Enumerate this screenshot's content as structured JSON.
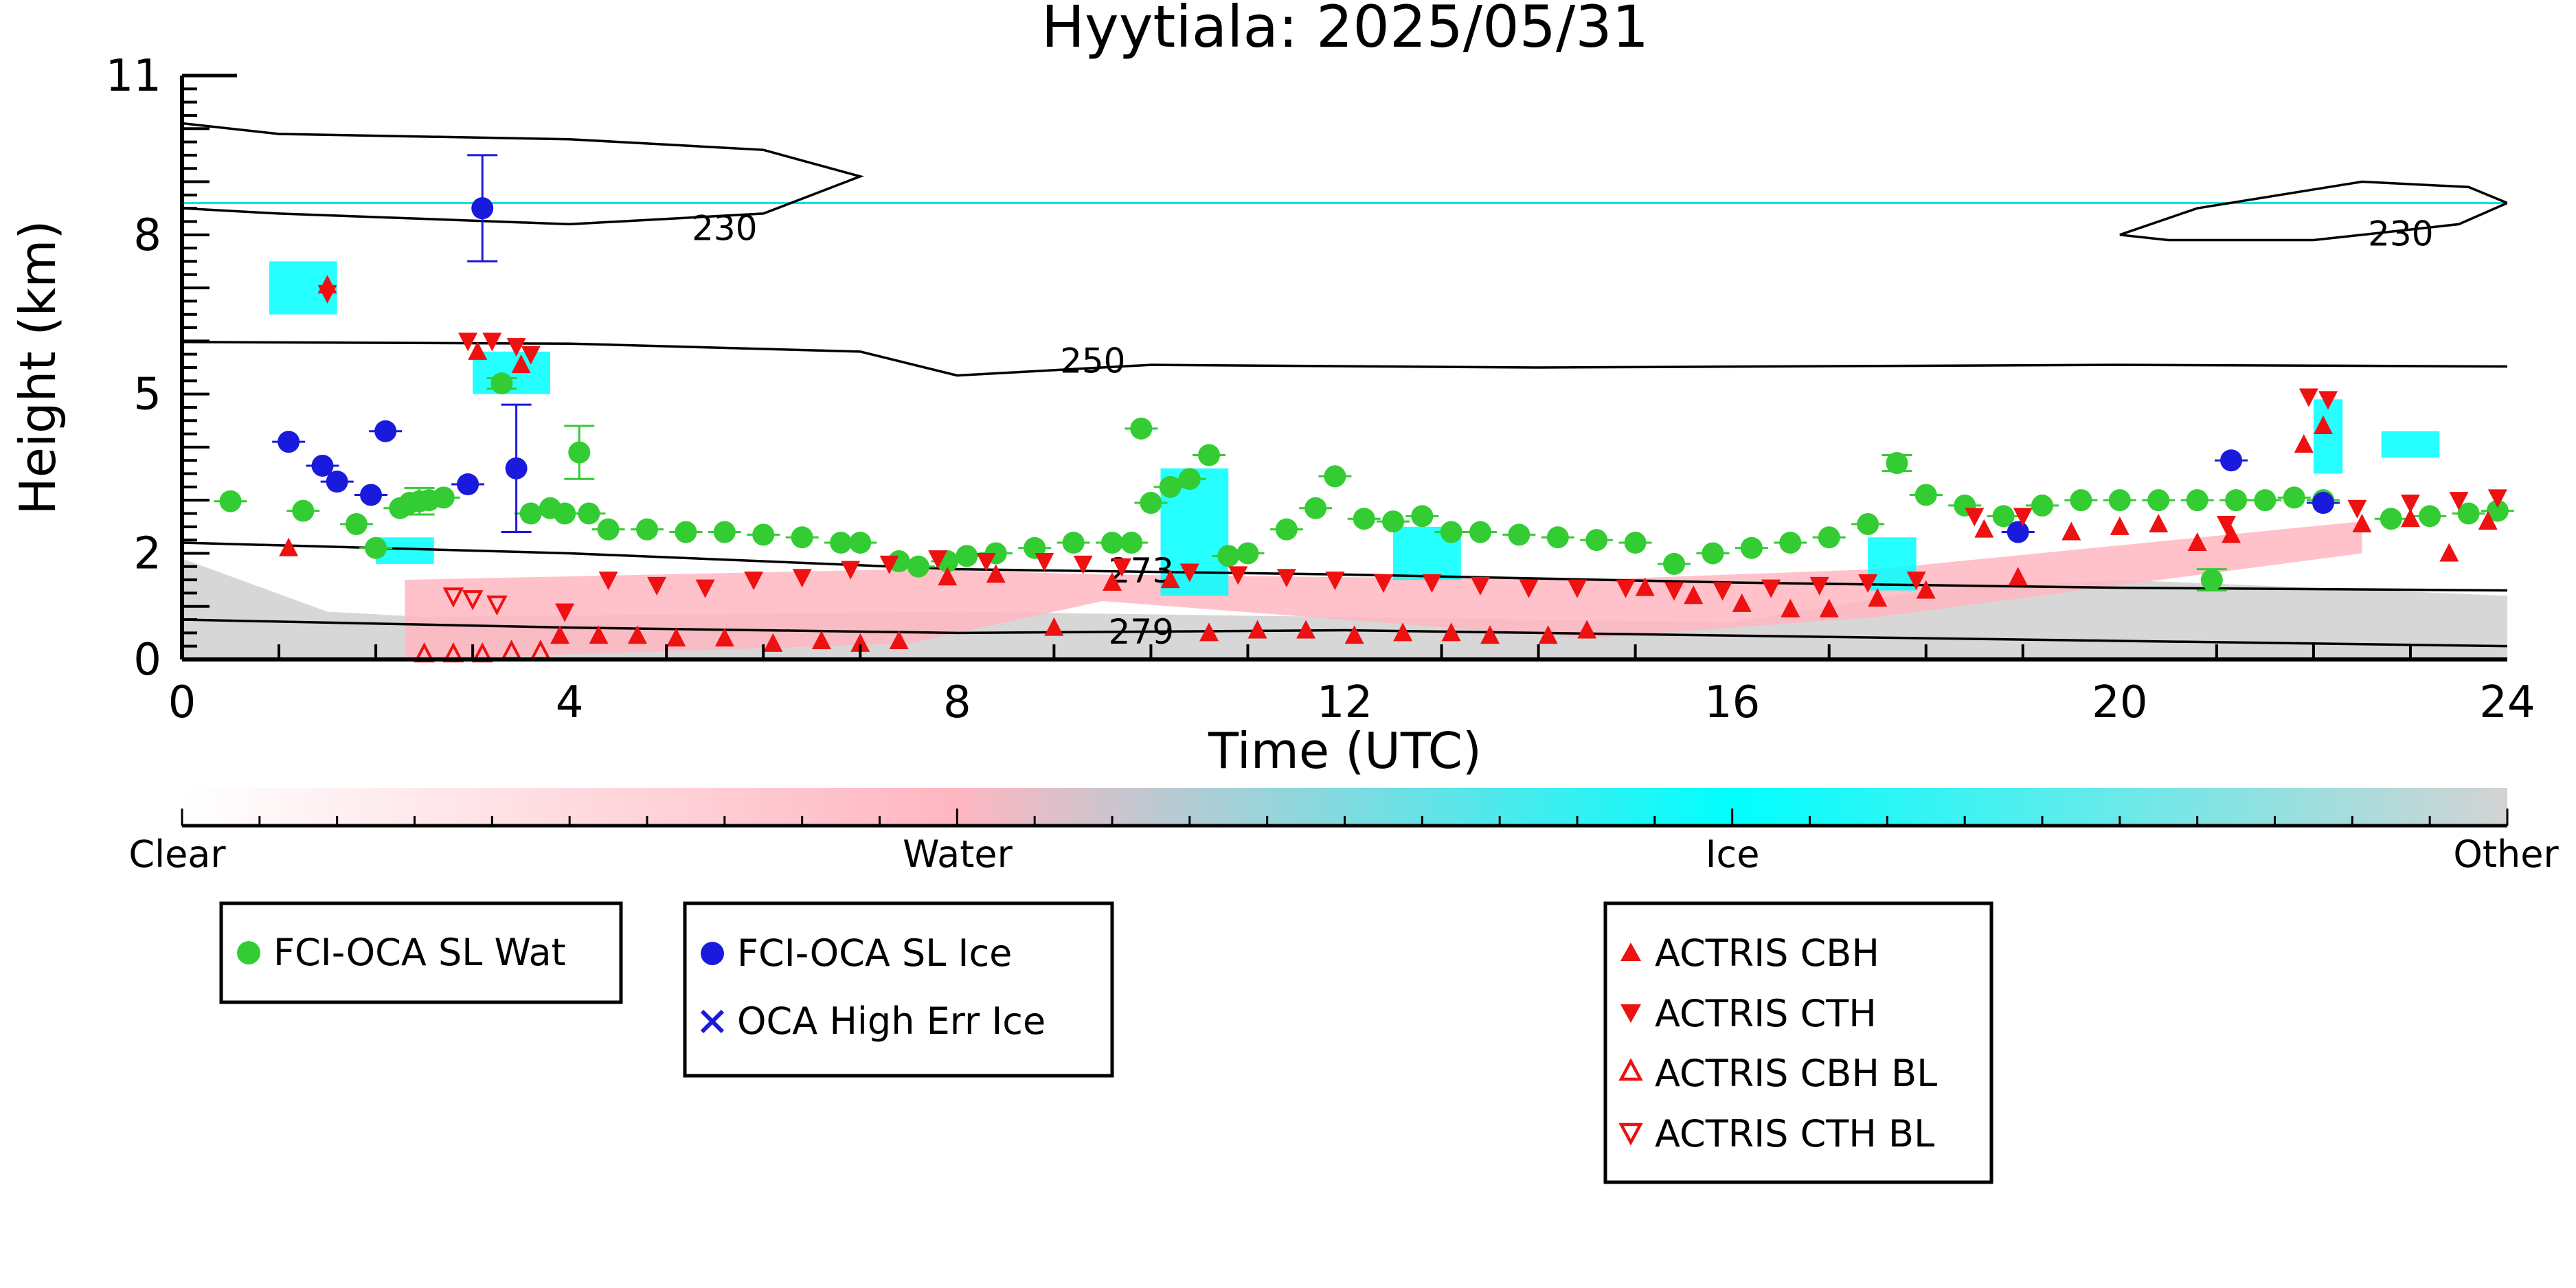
{
  "chart_data": {
    "type": "scatter",
    "title": "Hyytiala: 2025/05/31",
    "xlabel": "Time (UTC)",
    "ylabel": "Height (km)",
    "xlim": [
      0,
      24
    ],
    "ylim": [
      0,
      11
    ],
    "xticks": [
      0,
      4,
      8,
      12,
      16,
      20,
      24
    ],
    "yticks": [
      0,
      2,
      5,
      8,
      11
    ],
    "background_classification": {
      "ice_layer_top_km": 8.6,
      "other_low_layer_km": [
        [
          0,
          1.9
        ],
        [
          1.5,
          0.9
        ],
        [
          2.5,
          0.8
        ],
        [
          8,
          0.9
        ],
        [
          12,
          0.8
        ],
        [
          16,
          0.7
        ],
        [
          18,
          1.3
        ],
        [
          20,
          1.5
        ],
        [
          24,
          1.2
        ]
      ],
      "water_layer": [
        [
          2.3,
          0.0,
          1.5
        ],
        [
          7.5,
          0.3,
          1.7
        ],
        [
          9.5,
          1.1,
          1.6
        ],
        [
          14.5,
          0.4,
          1.5
        ],
        [
          17.5,
          0.8,
          1.7
        ],
        [
          22.5,
          2.0,
          2.6
        ]
      ],
      "ice_patches": [
        [
          0.9,
          1.6,
          6.5,
          7.5
        ],
        [
          3.0,
          3.8,
          5.0,
          5.8
        ],
        [
          2.0,
          2.6,
          1.8,
          2.3
        ],
        [
          10.1,
          10.8,
          1.2,
          3.6
        ],
        [
          12.5,
          13.2,
          1.5,
          2.5
        ],
        [
          17.4,
          17.9,
          1.3,
          2.3
        ],
        [
          22.0,
          22.3,
          3.5,
          4.9
        ],
        [
          22.7,
          23.3,
          3.8,
          4.3
        ]
      ]
    },
    "isotherms": [
      {
        "label": "230",
        "points": [
          [
            0,
            10.1
          ],
          [
            1,
            9.9
          ],
          [
            4,
            9.8
          ],
          [
            6,
            9.6
          ],
          [
            7,
            9.1
          ],
          [
            6,
            8.4
          ],
          [
            4,
            8.2
          ],
          [
            1,
            8.4
          ],
          [
            0,
            8.5
          ]
        ]
      },
      {
        "label": "230",
        "points": [
          [
            20.0,
            8.0
          ],
          [
            20.8,
            8.5
          ],
          [
            22.5,
            9.0
          ],
          [
            23.6,
            8.9
          ],
          [
            24,
            8.6
          ],
          [
            23.5,
            8.2
          ],
          [
            22,
            7.9
          ],
          [
            20.5,
            7.9
          ],
          [
            20.0,
            8.0
          ]
        ],
        "closed": true
      },
      {
        "label": "250",
        "points": [
          [
            0,
            5.98
          ],
          [
            4,
            5.95
          ],
          [
            7,
            5.8
          ],
          [
            8,
            5.35
          ],
          [
            10,
            5.55
          ],
          [
            14,
            5.5
          ],
          [
            20,
            5.55
          ],
          [
            24,
            5.52
          ]
        ]
      },
      {
        "label": "273",
        "points": [
          [
            0,
            2.2
          ],
          [
            2,
            2.1
          ],
          [
            4,
            2.0
          ],
          [
            8,
            1.7
          ],
          [
            12,
            1.6
          ],
          [
            16,
            1.45
          ],
          [
            20,
            1.35
          ],
          [
            24,
            1.3
          ]
        ]
      },
      {
        "label": "279",
        "points": [
          [
            0,
            0.75
          ],
          [
            4,
            0.6
          ],
          [
            8,
            0.5
          ],
          [
            12,
            0.55
          ],
          [
            16,
            0.45
          ],
          [
            20,
            0.35
          ],
          [
            24,
            0.25
          ]
        ]
      }
    ],
    "series": [
      {
        "name": "FCI-OCA SL Wat",
        "marker": "circle",
        "color": "#33cc33",
        "points": [
          [
            0.5,
            2.98
          ],
          [
            1.25,
            2.8
          ],
          [
            1.8,
            2.55
          ],
          [
            2.0,
            2.1
          ],
          [
            2.25,
            2.85
          ],
          [
            2.35,
            2.95
          ],
          [
            2.45,
            2.98
          ],
          [
            2.55,
            3.0
          ],
          [
            2.7,
            3.05
          ],
          [
            3.3,
            5.2
          ],
          [
            3.6,
            2.75
          ],
          [
            3.8,
            2.85
          ],
          [
            3.95,
            2.75
          ],
          [
            4.1,
            3.9
          ],
          [
            4.2,
            2.75
          ],
          [
            4.4,
            2.45
          ],
          [
            4.8,
            2.45
          ],
          [
            5.2,
            2.4
          ],
          [
            5.6,
            2.4
          ],
          [
            6.0,
            2.35
          ],
          [
            6.4,
            2.3
          ],
          [
            6.8,
            2.2
          ],
          [
            7.0,
            2.2
          ],
          [
            7.4,
            1.85
          ],
          [
            7.6,
            1.75
          ],
          [
            7.9,
            1.85
          ],
          [
            8.1,
            1.95
          ],
          [
            8.4,
            2.0
          ],
          [
            8.8,
            2.1
          ],
          [
            9.2,
            2.2
          ],
          [
            9.6,
            2.2
          ],
          [
            9.8,
            2.2
          ],
          [
            9.9,
            4.35
          ],
          [
            10.0,
            2.95
          ],
          [
            10.2,
            3.25
          ],
          [
            10.4,
            3.4
          ],
          [
            10.6,
            3.85
          ],
          [
            10.8,
            1.95
          ],
          [
            11.0,
            2.0
          ],
          [
            11.4,
            2.45
          ],
          [
            11.7,
            2.85
          ],
          [
            11.9,
            3.45
          ],
          [
            12.2,
            2.65
          ],
          [
            12.5,
            2.6
          ],
          [
            12.8,
            2.7
          ],
          [
            13.1,
            2.4
          ],
          [
            13.4,
            2.4
          ],
          [
            13.8,
            2.35
          ],
          [
            14.2,
            2.3
          ],
          [
            14.6,
            2.25
          ],
          [
            15.0,
            2.2
          ],
          [
            15.4,
            1.8
          ],
          [
            15.8,
            2.0
          ],
          [
            16.2,
            2.1
          ],
          [
            16.6,
            2.2
          ],
          [
            17.0,
            2.3
          ],
          [
            17.4,
            2.55
          ],
          [
            17.7,
            3.7
          ],
          [
            18.0,
            3.1
          ],
          [
            18.4,
            2.9
          ],
          [
            18.8,
            2.7
          ],
          [
            19.2,
            2.9
          ],
          [
            19.6,
            3.0
          ],
          [
            20.0,
            3.0
          ],
          [
            20.4,
            3.0
          ],
          [
            20.8,
            3.0
          ],
          [
            20.95,
            1.5
          ],
          [
            21.2,
            3.0
          ],
          [
            21.5,
            3.0
          ],
          [
            21.8,
            3.05
          ],
          [
            22.1,
            3.0
          ],
          [
            22.8,
            2.65
          ],
          [
            23.2,
            2.7
          ],
          [
            23.6,
            2.75
          ],
          [
            23.9,
            2.8
          ]
        ],
        "errors": {
          "2.0": 0.35,
          "2.45": 0.25,
          "3.3": 0.1,
          "4.1": 0.5,
          "17.7": 0.15,
          "20.95": 0.2
        }
      },
      {
        "name": "FCI-OCA SL Ice",
        "marker": "circle",
        "color": "#1a1adc",
        "points": [
          [
            1.1,
            4.1
          ],
          [
            1.45,
            3.65
          ],
          [
            1.6,
            3.35
          ],
          [
            1.95,
            3.1
          ],
          [
            2.1,
            4.3
          ],
          [
            2.95,
            3.3
          ],
          [
            3.1,
            8.5
          ],
          [
            3.45,
            3.6
          ],
          [
            18.95,
            2.4
          ],
          [
            21.15,
            3.75
          ],
          [
            22.1,
            2.95
          ]
        ],
        "errors": {
          "3.1": 1.0,
          "3.45": 1.2
        }
      },
      {
        "name": "OCA High Err Ice",
        "marker": "x",
        "color": "#1a1adc",
        "points": []
      },
      {
        "name": "ACTRIS CBH",
        "marker": "triangle-up",
        "color": "#ee1111",
        "points": [
          [
            1.1,
            2.1
          ],
          [
            1.5,
            7.05
          ],
          [
            3.05,
            5.8
          ],
          [
            3.5,
            5.55
          ],
          [
            3.9,
            0.45
          ],
          [
            4.3,
            0.45
          ],
          [
            4.7,
            0.45
          ],
          [
            5.1,
            0.4
          ],
          [
            5.6,
            0.4
          ],
          [
            6.1,
            0.3
          ],
          [
            6.6,
            0.35
          ],
          [
            7.0,
            0.3
          ],
          [
            7.4,
            0.35
          ],
          [
            7.9,
            1.55
          ],
          [
            8.4,
            1.6
          ],
          [
            9.0,
            0.6
          ],
          [
            9.6,
            1.45
          ],
          [
            10.2,
            1.5
          ],
          [
            10.6,
            0.5
          ],
          [
            11.1,
            0.55
          ],
          [
            11.6,
            0.55
          ],
          [
            12.1,
            0.45
          ],
          [
            12.6,
            0.5
          ],
          [
            13.1,
            0.5
          ],
          [
            13.5,
            0.45
          ],
          [
            14.1,
            0.45
          ],
          [
            14.5,
            0.55
          ],
          [
            15.1,
            1.35
          ],
          [
            15.6,
            1.2
          ],
          [
            16.1,
            1.05
          ],
          [
            16.6,
            0.95
          ],
          [
            17.0,
            0.95
          ],
          [
            17.5,
            1.15
          ],
          [
            18.0,
            1.3
          ],
          [
            18.6,
            2.45
          ],
          [
            18.95,
            1.55
          ],
          [
            19.5,
            2.4
          ],
          [
            20.0,
            2.5
          ],
          [
            20.4,
            2.55
          ],
          [
            20.8,
            2.2
          ],
          [
            21.15,
            2.35
          ],
          [
            21.9,
            4.05
          ],
          [
            22.1,
            4.4
          ],
          [
            22.5,
            2.55
          ],
          [
            23.0,
            2.65
          ],
          [
            23.4,
            2.0
          ],
          [
            23.8,
            2.6
          ]
        ]
      },
      {
        "name": "ACTRIS CTH",
        "marker": "triangle-down",
        "color": "#ee1111",
        "points": [
          [
            1.5,
            6.9
          ],
          [
            2.95,
            6.0
          ],
          [
            3.2,
            6.0
          ],
          [
            3.45,
            5.9
          ],
          [
            3.6,
            5.75
          ],
          [
            3.95,
            0.9
          ],
          [
            4.4,
            1.5
          ],
          [
            4.9,
            1.4
          ],
          [
            5.4,
            1.35
          ],
          [
            5.9,
            1.5
          ],
          [
            6.4,
            1.55
          ],
          [
            6.9,
            1.7
          ],
          [
            7.3,
            1.8
          ],
          [
            7.8,
            1.9
          ],
          [
            8.3,
            1.85
          ],
          [
            8.9,
            1.85
          ],
          [
            9.3,
            1.8
          ],
          [
            9.7,
            1.75
          ],
          [
            10.4,
            1.65
          ],
          [
            10.9,
            1.6
          ],
          [
            11.4,
            1.55
          ],
          [
            11.9,
            1.5
          ],
          [
            12.4,
            1.45
          ],
          [
            12.9,
            1.45
          ],
          [
            13.4,
            1.4
          ],
          [
            13.9,
            1.35
          ],
          [
            14.4,
            1.35
          ],
          [
            14.9,
            1.35
          ],
          [
            15.4,
            1.3
          ],
          [
            15.9,
            1.3
          ],
          [
            16.4,
            1.35
          ],
          [
            16.9,
            1.4
          ],
          [
            17.4,
            1.45
          ],
          [
            17.9,
            1.5
          ],
          [
            18.5,
            2.7
          ],
          [
            19.0,
            2.7
          ],
          [
            21.1,
            2.55
          ],
          [
            21.95,
            4.95
          ],
          [
            22.15,
            4.9
          ],
          [
            22.45,
            2.85
          ],
          [
            23.0,
            2.95
          ],
          [
            23.5,
            3.0
          ],
          [
            23.9,
            3.05
          ]
        ]
      },
      {
        "name": "ACTRIS CBH BL",
        "marker": "triangle-up-open",
        "color": "#ee1111",
        "points": [
          [
            2.5,
            0.1
          ],
          [
            2.8,
            0.1
          ],
          [
            3.1,
            0.1
          ],
          [
            3.4,
            0.15
          ],
          [
            3.7,
            0.15
          ]
        ]
      },
      {
        "name": "ACTRIS CTH BL",
        "marker": "triangle-down-open",
        "color": "#ee1111",
        "points": [
          [
            2.8,
            1.2
          ],
          [
            3.0,
            1.15
          ],
          [
            3.25,
            1.05
          ]
        ]
      }
    ],
    "colorbar": {
      "labels": [
        "Clear",
        "Water",
        "Ice",
        "Other"
      ],
      "colors": [
        "#ffffff",
        "#ffb6c1",
        "#00ffff",
        "#d3d3d3"
      ]
    }
  },
  "legend_boxes": {
    "box1": [
      "FCI-OCA SL Wat"
    ],
    "box2": [
      "FCI-OCA SL Ice",
      "OCA High Err Ice"
    ],
    "box3": [
      "ACTRIS CBH",
      "ACTRIS CTH",
      "ACTRIS CBH BL",
      "ACTRIS CTH BL"
    ]
  }
}
